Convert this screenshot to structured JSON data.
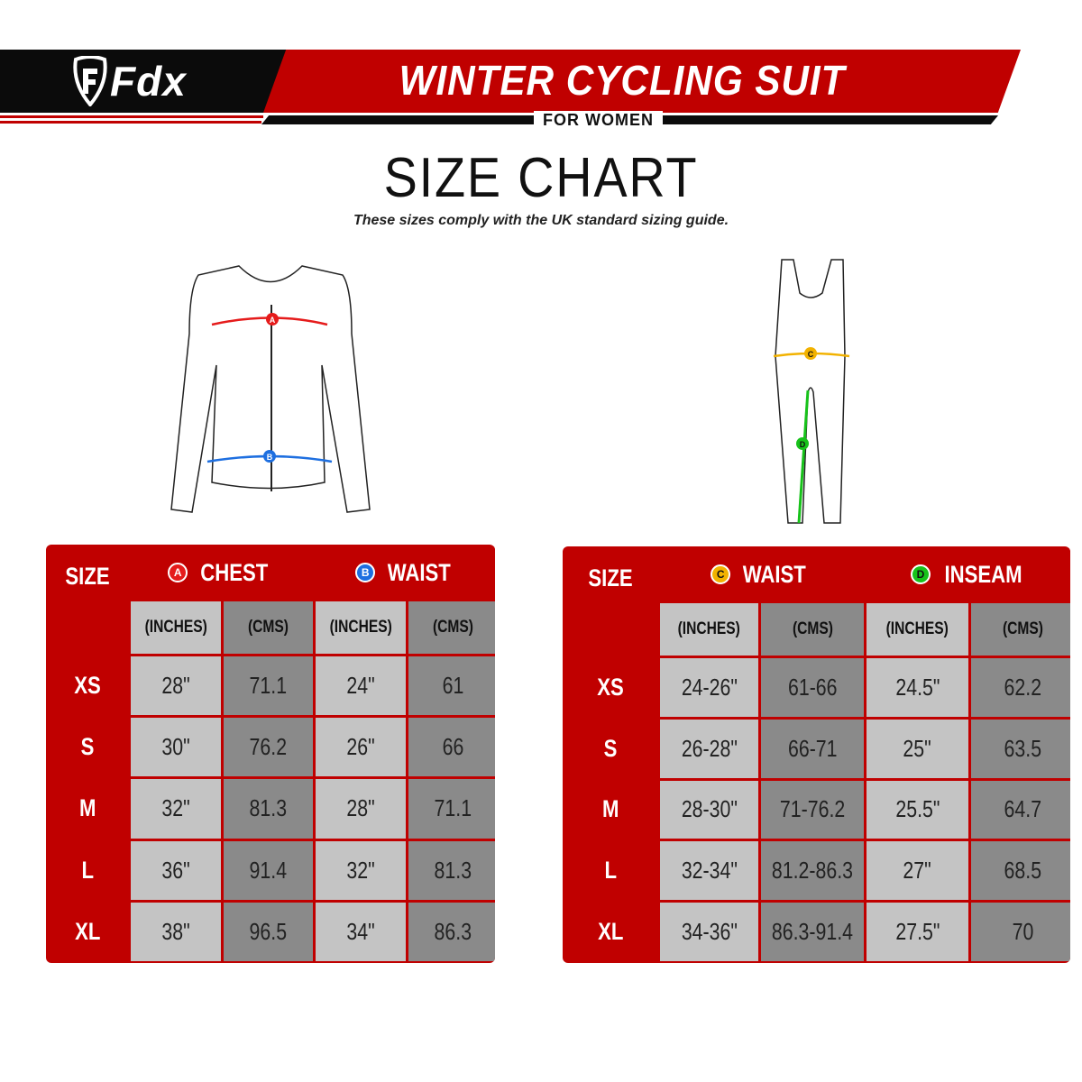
{
  "brand": {
    "logo": "Fdx",
    "title": "WINTER CYCLING SUIT",
    "subtitle": "FOR WOMEN"
  },
  "heading": {
    "title": "SIZE CHART",
    "note": "These sizes comply with the UK standard sizing guide."
  },
  "colors": {
    "brand_red": "#c00000",
    "A": "#e51b1b",
    "B": "#1e6fe0",
    "C": "#f2b200",
    "D": "#17c21a"
  },
  "diagrams": {
    "jersey": {
      "markers": [
        "A",
        "B"
      ]
    },
    "bib": {
      "markers": [
        "C",
        "D"
      ]
    }
  },
  "top_table": {
    "size_label": "SIZE",
    "groups": [
      {
        "badge": "A",
        "label": "CHEST"
      },
      {
        "badge": "B",
        "label": "WAIST"
      }
    ],
    "units": [
      "(INCHES)",
      "(CMS)",
      "(INCHES)",
      "(CMS)"
    ],
    "rows": [
      {
        "size": "XS",
        "values": [
          "28\"",
          "71.1",
          "24\"",
          "61"
        ]
      },
      {
        "size": "S",
        "values": [
          "30\"",
          "76.2",
          "26\"",
          "66"
        ]
      },
      {
        "size": "M",
        "values": [
          "32\"",
          "81.3",
          "28\"",
          "71.1"
        ]
      },
      {
        "size": "L",
        "values": [
          "36\"",
          "91.4",
          "32\"",
          "81.3"
        ]
      },
      {
        "size": "XL",
        "values": [
          "38\"",
          "96.5",
          "34\"",
          "86.3"
        ]
      }
    ]
  },
  "bottom_table": {
    "size_label": "SIZE",
    "groups": [
      {
        "badge": "C",
        "label": "WAIST"
      },
      {
        "badge": "D",
        "label": "INSEAM"
      }
    ],
    "units": [
      "(INCHES)",
      "(CMS)",
      "(INCHES)",
      "(CMS)"
    ],
    "rows": [
      {
        "size": "XS",
        "values": [
          "24-26\"",
          "61-66",
          "24.5\"",
          "62.2"
        ]
      },
      {
        "size": "S",
        "values": [
          "26-28\"",
          "66-71",
          "25\"",
          "63.5"
        ]
      },
      {
        "size": "M",
        "values": [
          "28-30\"",
          "71-76.2",
          "25.5\"",
          "64.7"
        ]
      },
      {
        "size": "L",
        "values": [
          "32-34\"",
          "81.2-86.3",
          "27\"",
          "68.5"
        ]
      },
      {
        "size": "XL",
        "values": [
          "34-36\"",
          "86.3-91.4",
          "27.5\"",
          "70"
        ]
      }
    ]
  }
}
